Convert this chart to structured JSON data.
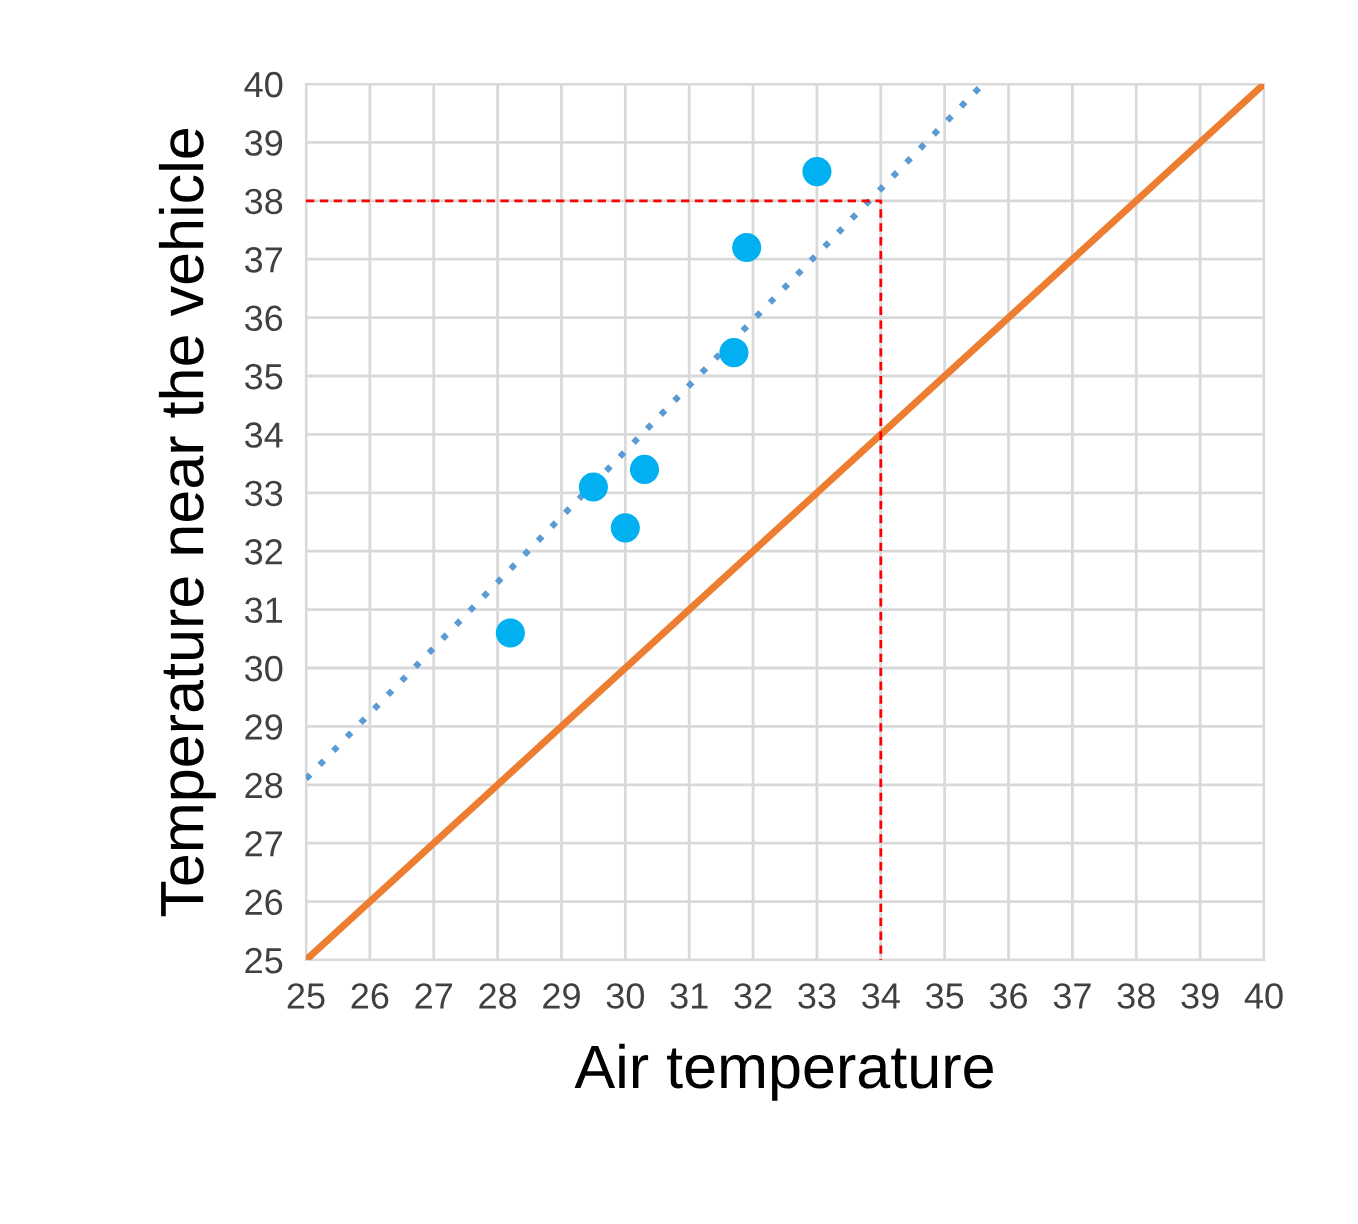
{
  "chart_data": {
    "type": "scatter",
    "xlabel": "Air temperature",
    "ylabel": "Temperature near the vehicle",
    "xlim": [
      25,
      40
    ],
    "ylim": [
      25,
      40
    ],
    "xticks": [
      25,
      26,
      27,
      28,
      29,
      30,
      31,
      32,
      33,
      34,
      35,
      36,
      37,
      38,
      39,
      40
    ],
    "yticks": [
      25,
      26,
      27,
      28,
      29,
      30,
      31,
      32,
      33,
      34,
      35,
      36,
      37,
      38,
      39,
      40
    ],
    "grid": true,
    "series": [
      {
        "type": "line",
        "color": "#ed7d31",
        "line_style": "solid",
        "marker": "none",
        "x": [
          25,
          40
        ],
        "values": [
          25,
          40
        ]
      },
      {
        "type": "line",
        "color": "#5b9bd5",
        "line_style": "dotted",
        "marker": "none",
        "x": [
          25,
          35.6
        ],
        "values": [
          28.1,
          40
        ]
      },
      {
        "type": "line",
        "color": "#ff0000",
        "line_style": "dashed",
        "marker": "none",
        "x": [
          25,
          34,
          34
        ],
        "values": [
          38,
          38,
          25
        ]
      },
      {
        "color": "#00b0f0",
        "marker": "circle",
        "x": [
          28.2,
          29.5,
          30.0,
          30.3,
          31.7,
          31.9,
          33.0
        ],
        "values": [
          30.6,
          33.1,
          32.4,
          33.4,
          35.4,
          37.2,
          38.5
        ]
      }
    ]
  }
}
